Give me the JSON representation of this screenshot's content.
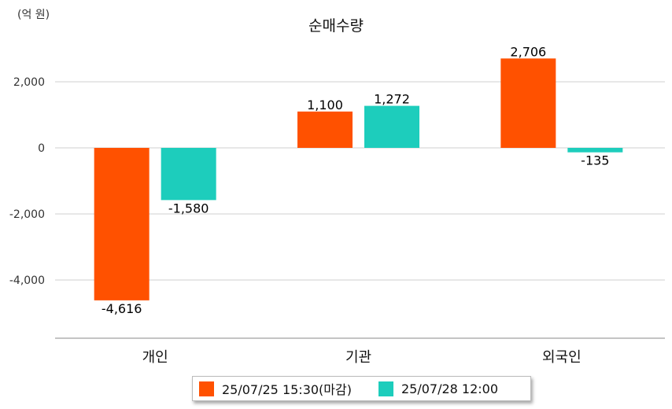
{
  "unit_label": "(억 원)",
  "chart_data": {
    "type": "bar",
    "title": "순매수량",
    "categories": [
      "개인",
      "기관",
      "외국인"
    ],
    "series": [
      {
        "name": "25/07/25 15:30(마감)",
        "color": "#ff5100",
        "values": [
          -4616,
          1100,
          2706
        ],
        "labels": [
          "-4,616",
          "1,100",
          "2,706"
        ]
      },
      {
        "name": "25/07/28 12:00",
        "color": "#1dcdbc",
        "values": [
          -1580,
          1272,
          -135
        ],
        "labels": [
          "-1,580",
          "1,272",
          "-135"
        ]
      }
    ],
    "yticks": [
      2000,
      0,
      -2000,
      -4000
    ],
    "ytick_labels": [
      "2,000",
      "0",
      "-2,000",
      "-4,000"
    ],
    "ylim": [
      -5800,
      3600
    ],
    "grid": true,
    "legend_position": "bottom"
  }
}
